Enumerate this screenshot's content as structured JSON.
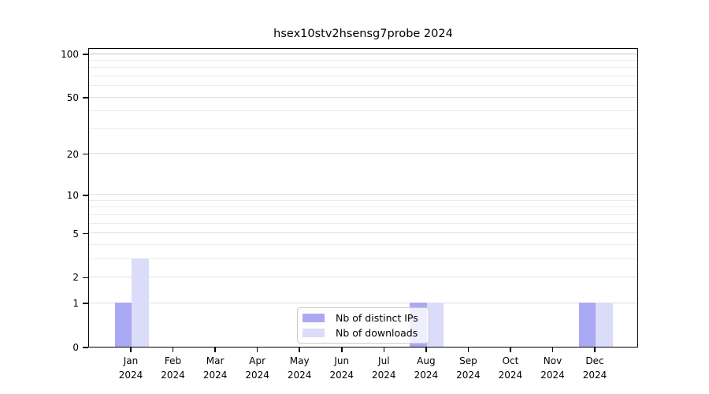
{
  "chart_data": {
    "type": "bar",
    "title": "hsex10stv2hsensg7probe 2024",
    "categories": [
      "Jan",
      "Feb",
      "Mar",
      "Apr",
      "May",
      "Jun",
      "Jul",
      "Aug",
      "Sep",
      "Oct",
      "Nov",
      "Dec"
    ],
    "year_label": "2024",
    "series": [
      {
        "name": "Nb of distinct IPs",
        "color": "#a9a9f4",
        "values": [
          1,
          0,
          0,
          0,
          0,
          0,
          0,
          1,
          0,
          0,
          0,
          1
        ]
      },
      {
        "name": "Nb of downloads",
        "color": "#dbdbfa",
        "values": [
          3,
          0,
          0,
          0,
          0,
          0,
          0,
          1,
          0,
          0,
          0,
          1
        ]
      }
    ],
    "yscale": "log1p",
    "ylim": [
      0,
      110
    ],
    "y_tick_labels": [
      100,
      50,
      20,
      10,
      5,
      2,
      1,
      0
    ],
    "y_gridlines": [
      1,
      2,
      3,
      4,
      5,
      6,
      7,
      8,
      9,
      10,
      20,
      30,
      40,
      50,
      60,
      70,
      80,
      90,
      100
    ],
    "grid": true,
    "legend": {
      "position": "lower-center"
    },
    "colors": {
      "axis": "#000000",
      "gridline_top": "#c6c6c6",
      "gridline_major": "#dedede",
      "gridline_minor": "#ececec"
    }
  }
}
